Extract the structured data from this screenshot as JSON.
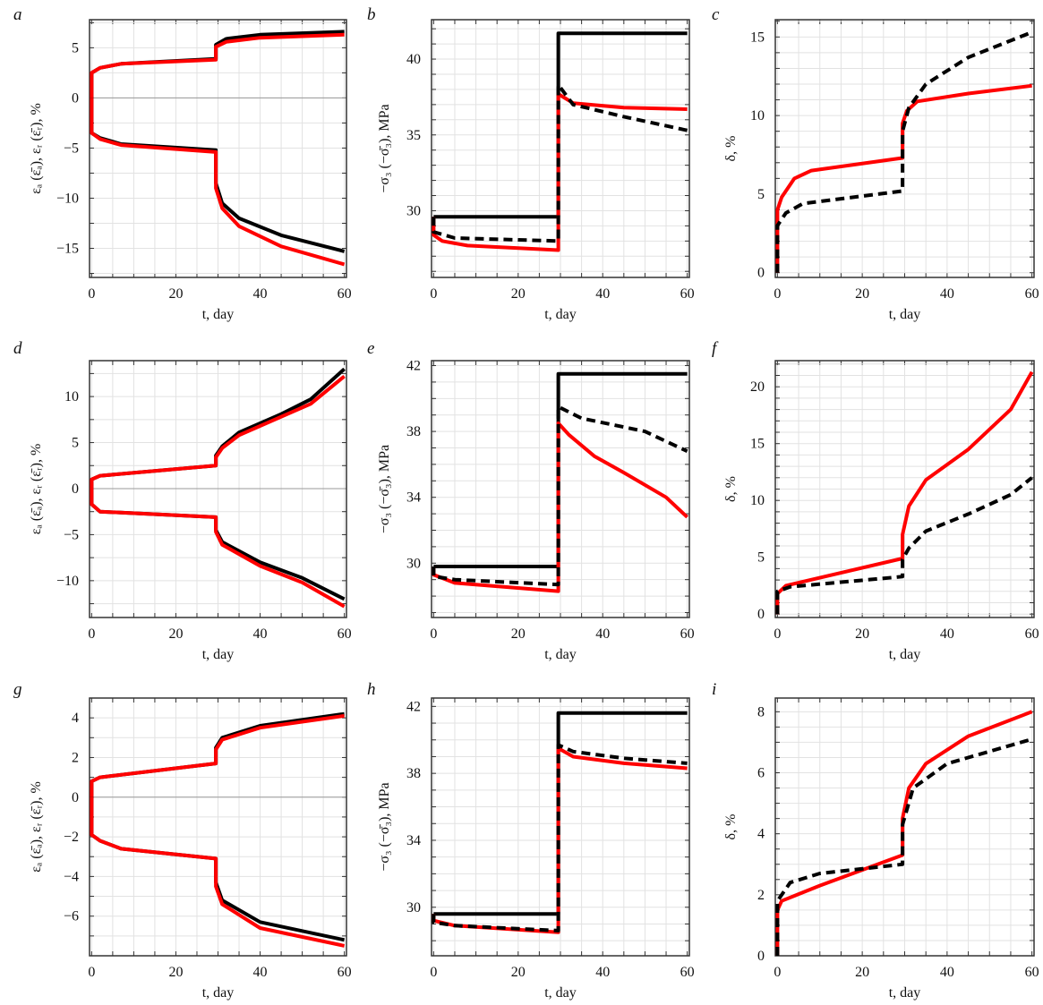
{
  "colors": {
    "model_a": "#000000",
    "model_b": "#ff0000",
    "grid": "#e2e2e2",
    "frame": "#333333"
  },
  "chart_data": [
    {
      "id": "a",
      "type": "line",
      "label": "a",
      "xlabel": "t, day",
      "ylabel": "εₐ (ε̄ₐ), εᵣ (ε̄ᵣ), %",
      "xlim": [
        -0.5,
        60.5
      ],
      "ylim": [
        -17.9,
        7.8
      ],
      "xticks": [
        0,
        20,
        40,
        60
      ],
      "yticks": [
        -15,
        -10,
        -5,
        0,
        5
      ],
      "yticklabels": [
        "−15",
        "−10",
        "−5",
        "0",
        "5"
      ],
      "xminor": 5,
      "yminor": 2.5,
      "zero_line": true,
      "grid": true,
      "series": [
        {
          "name": "axial-black",
          "color": "#000000",
          "dash": false,
          "x": [
            0,
            0,
            2,
            7,
            29.5,
            29.5,
            32,
            40,
            60
          ],
          "y": [
            0,
            2.5,
            3,
            3.4,
            3.9,
            5.3,
            5.9,
            6.3,
            6.6
          ]
        },
        {
          "name": "axial-red",
          "color": "#ff0000",
          "dash": false,
          "x": [
            0,
            0,
            2,
            7,
            29.5,
            29.5,
            32,
            40,
            60
          ],
          "y": [
            0,
            2.5,
            3,
            3.4,
            3.8,
            5.1,
            5.6,
            6,
            6.3
          ]
        },
        {
          "name": "radial-black",
          "color": "#000000",
          "dash": false,
          "x": [
            0,
            0,
            2,
            7,
            29.5,
            29.5,
            31,
            35,
            45,
            60
          ],
          "y": [
            0,
            -3.5,
            -4,
            -4.6,
            -5.2,
            -8.5,
            -10.5,
            -12,
            -13.7,
            -15.3
          ]
        },
        {
          "name": "radial-red",
          "color": "#ff0000",
          "dash": false,
          "x": [
            0,
            0,
            2,
            7,
            29.5,
            29.5,
            31,
            35,
            45,
            60
          ],
          "y": [
            0,
            -3.5,
            -4.1,
            -4.7,
            -5.4,
            -9,
            -11,
            -12.8,
            -14.8,
            -16.6
          ]
        }
      ]
    },
    {
      "id": "b",
      "type": "line",
      "label": "b",
      "xlabel": "t, day",
      "ylabel": "−σ₃ (−σ̄₃), MPa",
      "xlim": [
        -0.5,
        60.5
      ],
      "ylim": [
        25.6,
        42.6
      ],
      "xticks": [
        0,
        20,
        40,
        60
      ],
      "yticks": [
        30,
        35,
        40
      ],
      "yticklabels": [
        "30",
        "35",
        "40"
      ],
      "xminor": 5,
      "yminor": 1,
      "zero_line": false,
      "grid": true,
      "series": [
        {
          "name": "black-solid",
          "color": "#000000",
          "dash": false,
          "x": [
            0,
            29.5,
            29.5,
            60
          ],
          "y": [
            29.6,
            29.6,
            41.7,
            41.7
          ]
        },
        {
          "name": "red-solid",
          "color": "#ff0000",
          "dash": false,
          "x": [
            0,
            0,
            2,
            8,
            29.5,
            29.5,
            33,
            45,
            60
          ],
          "y": [
            29.6,
            28.4,
            28,
            27.7,
            27.4,
            37.7,
            37.1,
            36.8,
            36.7
          ]
        },
        {
          "name": "black-dashed",
          "color": "#000000",
          "dash": true,
          "x": [
            0,
            0,
            5,
            29.5,
            29.5,
            33,
            45,
            60
          ],
          "y": [
            29.6,
            28.6,
            28.2,
            28,
            38.3,
            37,
            36.2,
            35.3
          ]
        }
      ]
    },
    {
      "id": "c",
      "type": "line",
      "label": "c",
      "xlabel": "t, day",
      "ylabel": "δ, %",
      "xlim": [
        -0.5,
        60.5
      ],
      "ylim": [
        -0.3,
        16.1
      ],
      "xticks": [
        0,
        20,
        40,
        60
      ],
      "yticks": [
        0,
        5,
        10,
        15
      ],
      "yticklabels": [
        "0",
        "5",
        "10",
        "15"
      ],
      "xminor": 5,
      "yminor": 1,
      "zero_line": false,
      "grid": true,
      "series": [
        {
          "name": "red-solid",
          "color": "#ff0000",
          "dash": false,
          "x": [
            0,
            0,
            1,
            4,
            8,
            29.5,
            29.5,
            30.5,
            33,
            45,
            60
          ],
          "y": [
            0,
            4,
            4.8,
            6,
            6.5,
            7.3,
            9.5,
            10.3,
            10.9,
            11.4,
            11.9
          ]
        },
        {
          "name": "black-dashed",
          "color": "#000000",
          "dash": true,
          "x": [
            0,
            0,
            2,
            6,
            29.5,
            29.5,
            31,
            35,
            45,
            60
          ],
          "y": [
            0,
            3,
            3.8,
            4.4,
            5.2,
            9,
            10.5,
            12,
            13.7,
            15.3
          ]
        }
      ]
    },
    {
      "id": "d",
      "type": "line",
      "label": "d",
      "xlabel": "t, day",
      "ylabel": "εₐ (ε̄ₐ), εᵣ (ε̄ᵣ), %",
      "xlim": [
        -0.5,
        60.5
      ],
      "ylim": [
        -14,
        13.9
      ],
      "xticks": [
        0,
        20,
        40,
        60
      ],
      "yticks": [
        -10,
        -5,
        0,
        5,
        10
      ],
      "yticklabels": [
        "−10",
        "−5",
        "0",
        "5",
        "10"
      ],
      "xminor": 5,
      "yminor": 2.5,
      "zero_line": true,
      "grid": true,
      "series": [
        {
          "name": "axial-black",
          "color": "#000000",
          "dash": false,
          "x": [
            0,
            0,
            2,
            29.5,
            29.5,
            31,
            35,
            45,
            52,
            60
          ],
          "y": [
            0,
            1,
            1.4,
            2.5,
            3.6,
            4.6,
            6.1,
            8.1,
            9.7,
            13
          ]
        },
        {
          "name": "axial-red",
          "color": "#ff0000",
          "dash": false,
          "x": [
            0,
            0,
            2,
            29.5,
            29.5,
            31,
            35,
            45,
            52,
            60
          ],
          "y": [
            0,
            1,
            1.4,
            2.5,
            3.4,
            4.4,
            5.8,
            7.8,
            9.2,
            12.2
          ]
        },
        {
          "name": "radial-black",
          "color": "#000000",
          "dash": false,
          "x": [
            0,
            0,
            2,
            29.5,
            29.5,
            31,
            40,
            50,
            60
          ],
          "y": [
            0,
            -1.7,
            -2.5,
            -3.1,
            -4.5,
            -5.8,
            -8,
            -9.7,
            -12
          ]
        },
        {
          "name": "radial-red",
          "color": "#ff0000",
          "dash": false,
          "x": [
            0,
            0,
            2,
            29.5,
            29.5,
            31,
            40,
            50,
            60
          ],
          "y": [
            0,
            -1.7,
            -2.5,
            -3.1,
            -4.7,
            -6.1,
            -8.4,
            -10.2,
            -12.8
          ]
        }
      ]
    },
    {
      "id": "e",
      "type": "line",
      "label": "e",
      "xlabel": "t, day",
      "ylabel": "−σ₃ (−σ̄₃), MPa",
      "xlim": [
        -0.5,
        60.5
      ],
      "ylim": [
        26.7,
        42.3
      ],
      "xticks": [
        0,
        20,
        40,
        60
      ],
      "yticks": [
        30,
        34,
        38,
        42
      ],
      "yticklabels": [
        "30",
        "34",
        "38",
        "42"
      ],
      "xminor": 5,
      "yminor": 1,
      "zero_line": false,
      "grid": true,
      "series": [
        {
          "name": "black-solid",
          "color": "#000000",
          "dash": false,
          "x": [
            0,
            29.5,
            29.5,
            60
          ],
          "y": [
            29.8,
            29.8,
            41.5,
            41.5
          ]
        },
        {
          "name": "red-solid",
          "color": "#ff0000",
          "dash": false,
          "x": [
            0,
            0,
            5,
            29.5,
            29.5,
            32,
            38,
            45,
            55,
            60
          ],
          "y": [
            29.8,
            29.3,
            28.8,
            28.3,
            38.5,
            37.8,
            36.5,
            35.5,
            34,
            32.8
          ]
        },
        {
          "name": "black-dashed",
          "color": "#000000",
          "dash": true,
          "x": [
            0,
            0,
            5,
            29.5,
            29.5,
            35,
            50,
            60
          ],
          "y": [
            29.8,
            29.2,
            29,
            28.7,
            39.5,
            38.8,
            38,
            36.8
          ]
        }
      ]
    },
    {
      "id": "f",
      "type": "line",
      "label": "f",
      "xlabel": "t, day",
      "ylabel": "δ, %",
      "xlim": [
        -0.5,
        60.5
      ],
      "ylim": [
        -0.3,
        22.3
      ],
      "xticks": [
        0,
        20,
        40,
        60
      ],
      "yticks": [
        0,
        5,
        10,
        15,
        20
      ],
      "yticklabels": [
        "0",
        "5",
        "10",
        "15",
        "20"
      ],
      "xminor": 5,
      "yminor": 1,
      "zero_line": false,
      "grid": true,
      "series": [
        {
          "name": "red-solid",
          "color": "#ff0000",
          "dash": false,
          "x": [
            0,
            0,
            2,
            29.5,
            29.5,
            31,
            35,
            45,
            55,
            60
          ],
          "y": [
            0,
            1.8,
            2.5,
            4.9,
            7,
            9.5,
            11.8,
            14.5,
            18,
            21.3
          ]
        },
        {
          "name": "black-dashed",
          "color": "#000000",
          "dash": true,
          "x": [
            0,
            0,
            3,
            29.5,
            29.5,
            31,
            35,
            45,
            55,
            60
          ],
          "y": [
            0,
            2,
            2.4,
            3.3,
            4.8,
            5.8,
            7.3,
            8.8,
            10.5,
            12
          ]
        }
      ]
    },
    {
      "id": "g",
      "type": "line",
      "label": "g",
      "xlabel": "t, day",
      "ylabel": "εₐ (ε̄ₐ), εᵣ (ε̄ᵣ), %",
      "xlim": [
        -0.5,
        60.5
      ],
      "ylim": [
        -8,
        5
      ],
      "xticks": [
        0,
        20,
        40,
        60
      ],
      "yticks": [
        -6,
        -4,
        -2,
        0,
        2,
        4
      ],
      "yticklabels": [
        "−6",
        "−4",
        "−2",
        "0",
        "2",
        "4"
      ],
      "xminor": 5,
      "yminor": 1,
      "zero_line": true,
      "grid": true,
      "series": [
        {
          "name": "axial-black",
          "color": "#000000",
          "dash": false,
          "x": [
            0,
            0,
            2,
            29.5,
            29.5,
            31,
            40,
            60
          ],
          "y": [
            0,
            0.8,
            1,
            1.7,
            2.5,
            3,
            3.6,
            4.2
          ]
        },
        {
          "name": "axial-red",
          "color": "#ff0000",
          "dash": false,
          "x": [
            0,
            0,
            2,
            29.5,
            29.5,
            31,
            40,
            60
          ],
          "y": [
            0,
            0.8,
            1,
            1.7,
            2.4,
            2.9,
            3.5,
            4.1
          ]
        },
        {
          "name": "radial-black",
          "color": "#000000",
          "dash": false,
          "x": [
            0,
            0,
            2,
            7,
            29.5,
            29.5,
            31,
            40,
            60
          ],
          "y": [
            0,
            -1.9,
            -2.2,
            -2.6,
            -3.1,
            -4.3,
            -5.2,
            -6.3,
            -7.2
          ]
        },
        {
          "name": "radial-red",
          "color": "#ff0000",
          "dash": false,
          "x": [
            0,
            0,
            2,
            7,
            29.5,
            29.5,
            31,
            40,
            60
          ],
          "y": [
            0,
            -1.9,
            -2.2,
            -2.6,
            -3.1,
            -4.5,
            -5.4,
            -6.6,
            -7.5
          ]
        }
      ]
    },
    {
      "id": "h",
      "type": "line",
      "label": "h",
      "xlabel": "t, day",
      "ylabel": "−σ₃ (−σ̄₃), MPa",
      "xlim": [
        -0.5,
        60.5
      ],
      "ylim": [
        27.1,
        42.5
      ],
      "xticks": [
        0,
        20,
        40,
        60
      ],
      "yticks": [
        30,
        34,
        38,
        42
      ],
      "yticklabels": [
        "30",
        "34",
        "38",
        "42"
      ],
      "xminor": 5,
      "yminor": 1,
      "zero_line": false,
      "grid": true,
      "series": [
        {
          "name": "black-solid",
          "color": "#000000",
          "dash": false,
          "x": [
            0,
            29.5,
            29.5,
            60
          ],
          "y": [
            29.6,
            29.6,
            41.6,
            41.6
          ]
        },
        {
          "name": "red-solid",
          "color": "#ff0000",
          "dash": false,
          "x": [
            0,
            0,
            5,
            29.5,
            29.5,
            33,
            45,
            60
          ],
          "y": [
            29.6,
            29.2,
            28.9,
            28.5,
            39.5,
            39,
            38.6,
            38.3
          ]
        },
        {
          "name": "black-dashed",
          "color": "#000000",
          "dash": true,
          "x": [
            0,
            0,
            5,
            29.5,
            29.5,
            33,
            45,
            60
          ],
          "y": [
            29.6,
            29.1,
            28.9,
            28.6,
            39.7,
            39.3,
            38.9,
            38.6
          ]
        }
      ]
    },
    {
      "id": "i",
      "type": "line",
      "label": "i",
      "xlabel": "t, day",
      "ylabel": "δ, %",
      "xlim": [
        -0.5,
        60.5
      ],
      "ylim": [
        0,
        8.45
      ],
      "xticks": [
        0,
        20,
        40,
        60
      ],
      "yticks": [
        0,
        2,
        4,
        6,
        8
      ],
      "yticklabels": [
        "0",
        "2",
        "4",
        "6",
        "8"
      ],
      "xminor": 5,
      "yminor": 0.5,
      "zero_line": false,
      "grid": true,
      "series": [
        {
          "name": "red-solid",
          "color": "#ff0000",
          "dash": false,
          "x": [
            0,
            0,
            1,
            10,
            29.5,
            29.5,
            31,
            35,
            45,
            60
          ],
          "y": [
            0,
            1.5,
            1.8,
            2.3,
            3.3,
            4.5,
            5.5,
            6.3,
            7.2,
            8
          ]
        },
        {
          "name": "black-dashed",
          "color": "#000000",
          "dash": true,
          "x": [
            0,
            0,
            3,
            10,
            29.5,
            29.5,
            32,
            40,
            60
          ],
          "y": [
            0,
            1.8,
            2.4,
            2.7,
            3,
            4.3,
            5.5,
            6.3,
            7.1
          ]
        }
      ]
    }
  ]
}
